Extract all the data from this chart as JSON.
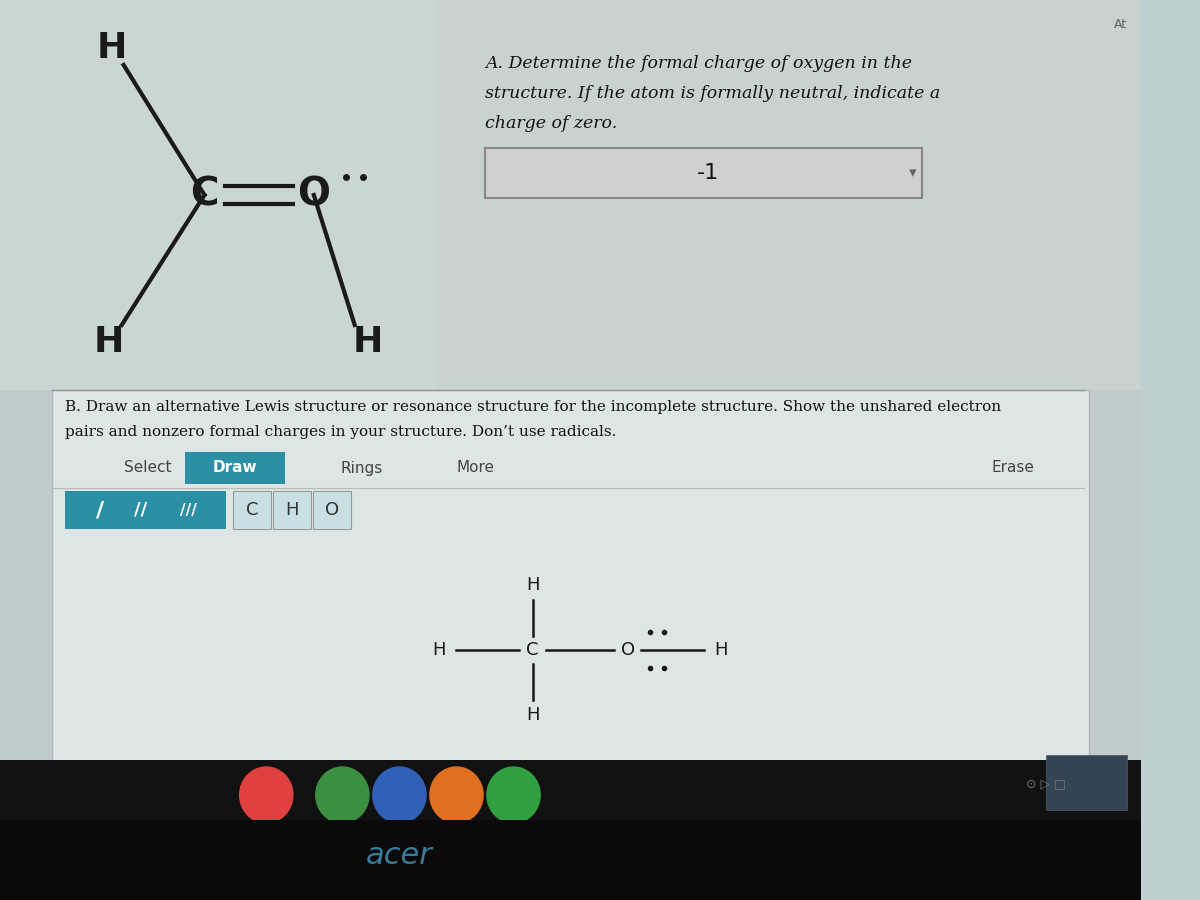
{
  "bg_top": "#b8c8c8",
  "bg_main": "#c0d0d0",
  "bg_panel": "#c8d4d4",
  "white_panel": "#e8e8e8",
  "answer_box_color": "#d8d8d8",
  "teal_btn": "#2a8fa0",
  "light_btn_bg": "#c8e0e4",
  "toolbar_divider": "#aaaaaa",
  "text_dark": "#1a1a1a",
  "text_mid": "#333333",
  "text_light": "#666666",
  "title_A_line1": "A. Determine the formal charge of oxygen in the",
  "title_A_line2": "structure. If the atom is formally neutral, indicate a",
  "title_A_line3": "charge of zero.",
  "answer_A": "-1",
  "title_B_line1": "B. Draw an alternative Lewis structure or resonance structure for the incomplete structure. Show the unshared electron",
  "title_B_line2": "pairs and nonzero formal charges in your structure. Don’t use radicals.",
  "taskbar_color": "#1a1a1a",
  "taskbar_dark": "#111111"
}
